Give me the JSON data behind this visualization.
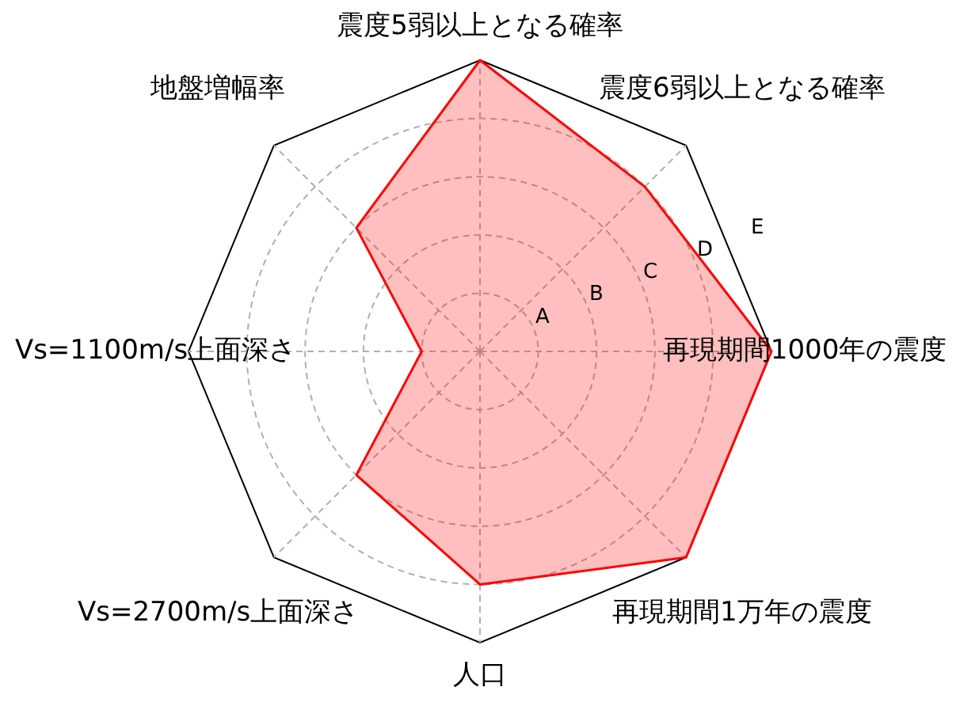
{
  "chart_data": {
    "type": "radar",
    "categories": [
      "震度5弱以上となる確率",
      "震度6弱以上となる確率",
      "再現期間1000年の震度",
      "再現期間1万年の震度",
      "人口",
      "Vs=2700m/s上面深さ",
      "Vs=1100m/s上面深さ",
      "地盤増幅率"
    ],
    "series": [
      {
        "color": "#ff0000",
        "values": [
          5,
          4,
          5,
          5,
          4,
          3,
          1,
          3
        ]
      }
    ],
    "ylim": [
      0,
      5
    ],
    "yticks": [
      {
        "value": 1,
        "label": "A"
      },
      {
        "value": 2,
        "label": "B"
      },
      {
        "value": 3,
        "label": "C"
      },
      {
        "value": 4,
        "label": "D"
      },
      {
        "value": 5,
        "label": "E"
      }
    ],
    "grid": true,
    "marker": "none"
  }
}
